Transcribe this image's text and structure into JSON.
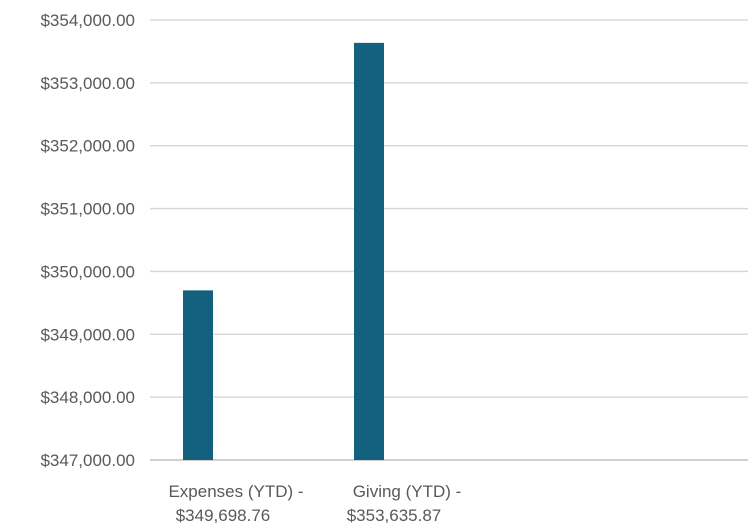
{
  "chart_data": {
    "type": "bar",
    "categories": [
      [
        "Expenses (YTD) -",
        "$349,698.76"
      ],
      [
        "Giving (YTD) -",
        "$353,635.87"
      ]
    ],
    "values": [
      349698.76,
      353635.87
    ],
    "ylim": [
      347000,
      354000
    ],
    "yticks": [
      {
        "value": 354000,
        "label": "$354,000.00"
      },
      {
        "value": 353000,
        "label": "$353,000.00"
      },
      {
        "value": 352000,
        "label": "$352,000.00"
      },
      {
        "value": 351000,
        "label": "$351,000.00"
      },
      {
        "value": 350000,
        "label": "$350,000.00"
      },
      {
        "value": 349000,
        "label": "$349,000.00"
      },
      {
        "value": 348000,
        "label": "$348,000.00"
      },
      {
        "value": 347000,
        "label": "$347,000.00"
      }
    ],
    "grid": true,
    "bar_color": "#14607f",
    "title": "",
    "xlabel": "",
    "ylabel": ""
  }
}
